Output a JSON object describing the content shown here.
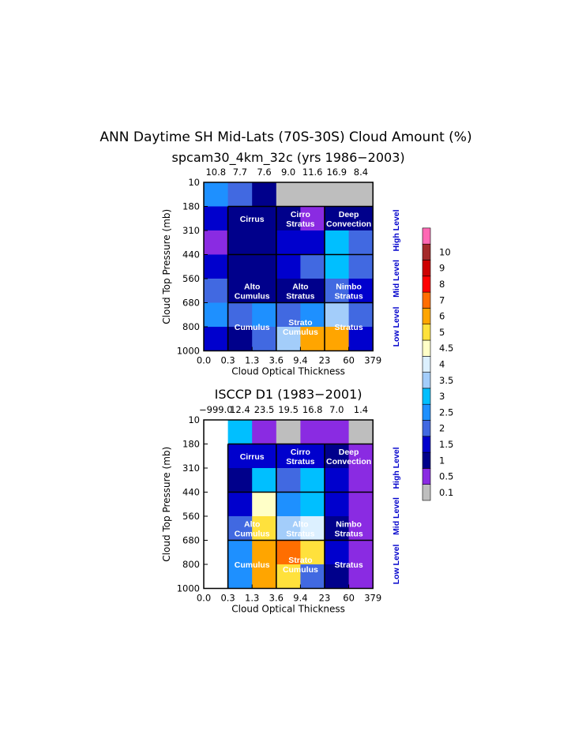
{
  "title": "ANN Daytime SH Mid-Lats (70S-30S) Cloud Amount (%)",
  "colors": {
    "gray": "#bebebe",
    "purple": "#8a2be2",
    "navy": "#00008b",
    "blue": "#0000cd",
    "royal": "#4169e1",
    "dodger": "#1e90ff",
    "deepsky": "#00bfff",
    "lightsky": "#a3cdfa",
    "paleblue": "#dcf0ff",
    "cream": "#ffffc8",
    "gold": "#ffe13c",
    "orange": "#ffa500",
    "darkorange": "#ff6e00",
    "red": "#ff0000",
    "darkred": "#cd0000",
    "brown": "#a52a2a",
    "pink": "#ff69b4",
    "grid": "#000000",
    "level_text": "#0000cc"
  },
  "chart_data": [
    {
      "type": "heatmap",
      "subtitle": "spcam30_4km_32c (yrs 1986−2003)",
      "xlabel": "Cloud Optical Thickness",
      "ylabel": "Cloud Top Pressure (mb)",
      "x_ticks": [
        "0.0",
        "0.3",
        "1.3",
        "3.6",
        "9.4",
        "23",
        "60",
        "379"
      ],
      "y_ticks": [
        "10",
        "180",
        "310",
        "440",
        "560",
        "680",
        "800",
        "1000"
      ],
      "column_totals": [
        "10.8",
        "7.7",
        "7.6",
        "9.0",
        "11.6",
        "16.9",
        "8.4"
      ],
      "cell_colors": [
        [
          "dodger",
          "royal",
          "navy",
          "gray",
          "gray",
          "gray",
          "gray"
        ],
        [
          "blue",
          "navy",
          "navy",
          "navy",
          "purple",
          "navy",
          "navy"
        ],
        [
          "purple",
          "navy",
          "navy",
          "blue",
          "blue",
          "deepsky",
          "royal"
        ],
        [
          "blue",
          "navy",
          "navy",
          "blue",
          "royal",
          "deepsky",
          "royal"
        ],
        [
          "royal",
          "navy",
          "navy",
          "navy",
          "navy",
          "royal",
          "blue"
        ],
        [
          "dodger",
          "royal",
          "dodger",
          "royal",
          "dodger",
          "lightsky",
          "royal"
        ],
        [
          "blue",
          "navy",
          "royal",
          "lightsky",
          "orange",
          "orange",
          "blue"
        ]
      ],
      "cloud_types": [
        {
          "lines": [
            "Cirrus"
          ],
          "row": 1,
          "col": 1.5
        },
        {
          "lines": [
            "Cirro",
            "Stratus"
          ],
          "row": 1,
          "col": 3.5
        },
        {
          "lines": [
            "Deep",
            "Convection"
          ],
          "row": 1,
          "col": 5.5
        },
        {
          "lines": [
            "Alto",
            "Cumulus"
          ],
          "row": 4,
          "col": 1.5
        },
        {
          "lines": [
            "Alto",
            "Stratus"
          ],
          "row": 4,
          "col": 3.5
        },
        {
          "lines": [
            "Nimbo",
            "Stratus"
          ],
          "row": 4,
          "col": 5.5
        },
        {
          "lines": [
            "Cumulus"
          ],
          "row": 5.5,
          "col": 1.5
        },
        {
          "lines": [
            "Strato",
            "Cumulus"
          ],
          "row": 5.5,
          "col": 3.5
        },
        {
          "lines": [
            "Stratus"
          ],
          "row": 5.5,
          "col": 5.5
        }
      ],
      "levels": [
        "High Level",
        "Mid Level",
        "Low Level"
      ]
    },
    {
      "type": "heatmap",
      "subtitle": "ISCCP D1 (1983−2001)",
      "xlabel": "Cloud Optical Thickness",
      "ylabel": "Cloud Top Pressure (mb)",
      "x_ticks": [
        "0.0",
        "0.3",
        "1.3",
        "3.6",
        "9.4",
        "23",
        "60",
        "379"
      ],
      "y_ticks": [
        "10",
        "180",
        "310",
        "440",
        "560",
        "680",
        "800",
        "1000"
      ],
      "column_totals": [
        "−999.0",
        "12.4",
        "23.5",
        "19.5",
        "16.8",
        "7.0",
        "1.4"
      ],
      "cell_colors": [
        [
          "white",
          "deepsky",
          "purple",
          "gray",
          "purple",
          "purple",
          "gray"
        ],
        [
          "white",
          "blue",
          "blue",
          "blue",
          "blue",
          "navy",
          "purple"
        ],
        [
          "white",
          "navy",
          "deepsky",
          "royal",
          "deepsky",
          "blue",
          "purple"
        ],
        [
          "white",
          "blue",
          "cream",
          "dodger",
          "deepsky",
          "blue",
          "purple"
        ],
        [
          "white",
          "royal",
          "gold",
          "lightsky",
          "paleblue",
          "navy",
          "purple"
        ],
        [
          "white",
          "dodger",
          "orange",
          "darkorange",
          "gold",
          "blue",
          "purple"
        ],
        [
          "white",
          "dodger",
          "orange",
          "gold",
          "royal",
          "navy",
          "purple"
        ]
      ],
      "cloud_types": [
        {
          "lines": [
            "Cirrus"
          ],
          "row": 1,
          "col": 1.5
        },
        {
          "lines": [
            "Cirro",
            "Stratus"
          ],
          "row": 1,
          "col": 3.5
        },
        {
          "lines": [
            "Deep",
            "Convection"
          ],
          "row": 1,
          "col": 5.5
        },
        {
          "lines": [
            "Alto",
            "Cumulus"
          ],
          "row": 4,
          "col": 1.5
        },
        {
          "lines": [
            "Alto",
            "Stratus"
          ],
          "row": 4,
          "col": 3.5
        },
        {
          "lines": [
            "Nimbo",
            "Stratus"
          ],
          "row": 4,
          "col": 5.5
        },
        {
          "lines": [
            "Cumulus"
          ],
          "row": 5.5,
          "col": 1.5
        },
        {
          "lines": [
            "Strato",
            "Cumulus"
          ],
          "row": 5.5,
          "col": 3.5
        },
        {
          "lines": [
            "Stratus"
          ],
          "row": 5.5,
          "col": 5.5
        }
      ],
      "levels": [
        "High Level",
        "Mid Level",
        "Low Level"
      ]
    }
  ],
  "colorbar": {
    "bins": [
      {
        "color": "gray",
        "label": "0.1"
      },
      {
        "color": "purple",
        "label": "0.5"
      },
      {
        "color": "navy",
        "label": "1"
      },
      {
        "color": "blue",
        "label": "1.5"
      },
      {
        "color": "royal",
        "label": "2"
      },
      {
        "color": "dodger",
        "label": "2.5"
      },
      {
        "color": "deepsky",
        "label": "3"
      },
      {
        "color": "lightsky",
        "label": "3.5"
      },
      {
        "color": "paleblue",
        "label": "4"
      },
      {
        "color": "cream",
        "label": "4.5"
      },
      {
        "color": "gold",
        "label": "5"
      },
      {
        "color": "orange",
        "label": "6"
      },
      {
        "color": "darkorange",
        "label": "7"
      },
      {
        "color": "red",
        "label": "8"
      },
      {
        "color": "darkred",
        "label": "9"
      },
      {
        "color": "brown",
        "label": "10"
      },
      {
        "color": "pink",
        "label": ""
      }
    ]
  }
}
